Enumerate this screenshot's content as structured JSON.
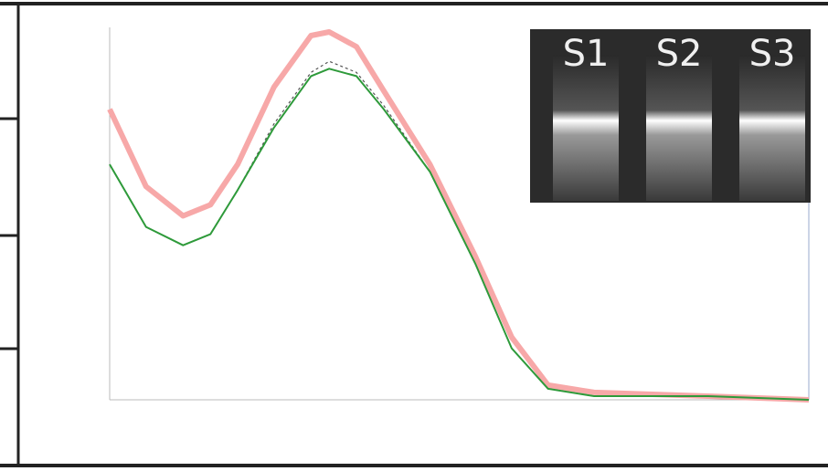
{
  "chart_data": {
    "type": "line",
    "x": [
      230,
      235.2,
      240.5,
      244.4,
      248.3,
      253.5,
      258.8,
      261.4,
      265.3,
      269.2,
      275.8,
      282.3,
      287.5,
      292.7,
      299.3,
      315.6,
      330
    ],
    "xlim": [
      230,
      330
    ],
    "ylim": [
      0,
      1.05
    ],
    "series": [
      {
        "color": "#f7a8a8",
        "values": [
          0.79,
          0.58,
          0.5,
          0.53,
          0.64,
          0.85,
          0.99,
          1.0,
          0.96,
          0.84,
          0.64,
          0.39,
          0.17,
          0.04,
          0.02,
          0.01,
          0
        ]
      },
      {
        "color": "#555555",
        "values": [
          0.64,
          0.47,
          0.42,
          0.45,
          0.57,
          0.75,
          0.89,
          0.92,
          0.89,
          0.8,
          0.62,
          0.37,
          0.14,
          0.03,
          0.01,
          0.01,
          0
        ]
      },
      {
        "color": "#2e9a3a",
        "values": [
          0.64,
          0.47,
          0.42,
          0.45,
          0.57,
          0.74,
          0.88,
          0.9,
          0.88,
          0.79,
          0.62,
          0.37,
          0.14,
          0.03,
          0.01,
          0.01,
          0
        ]
      }
    ],
    "inset": {
      "labels": [
        "S1",
        "S2",
        "S3"
      ]
    }
  }
}
